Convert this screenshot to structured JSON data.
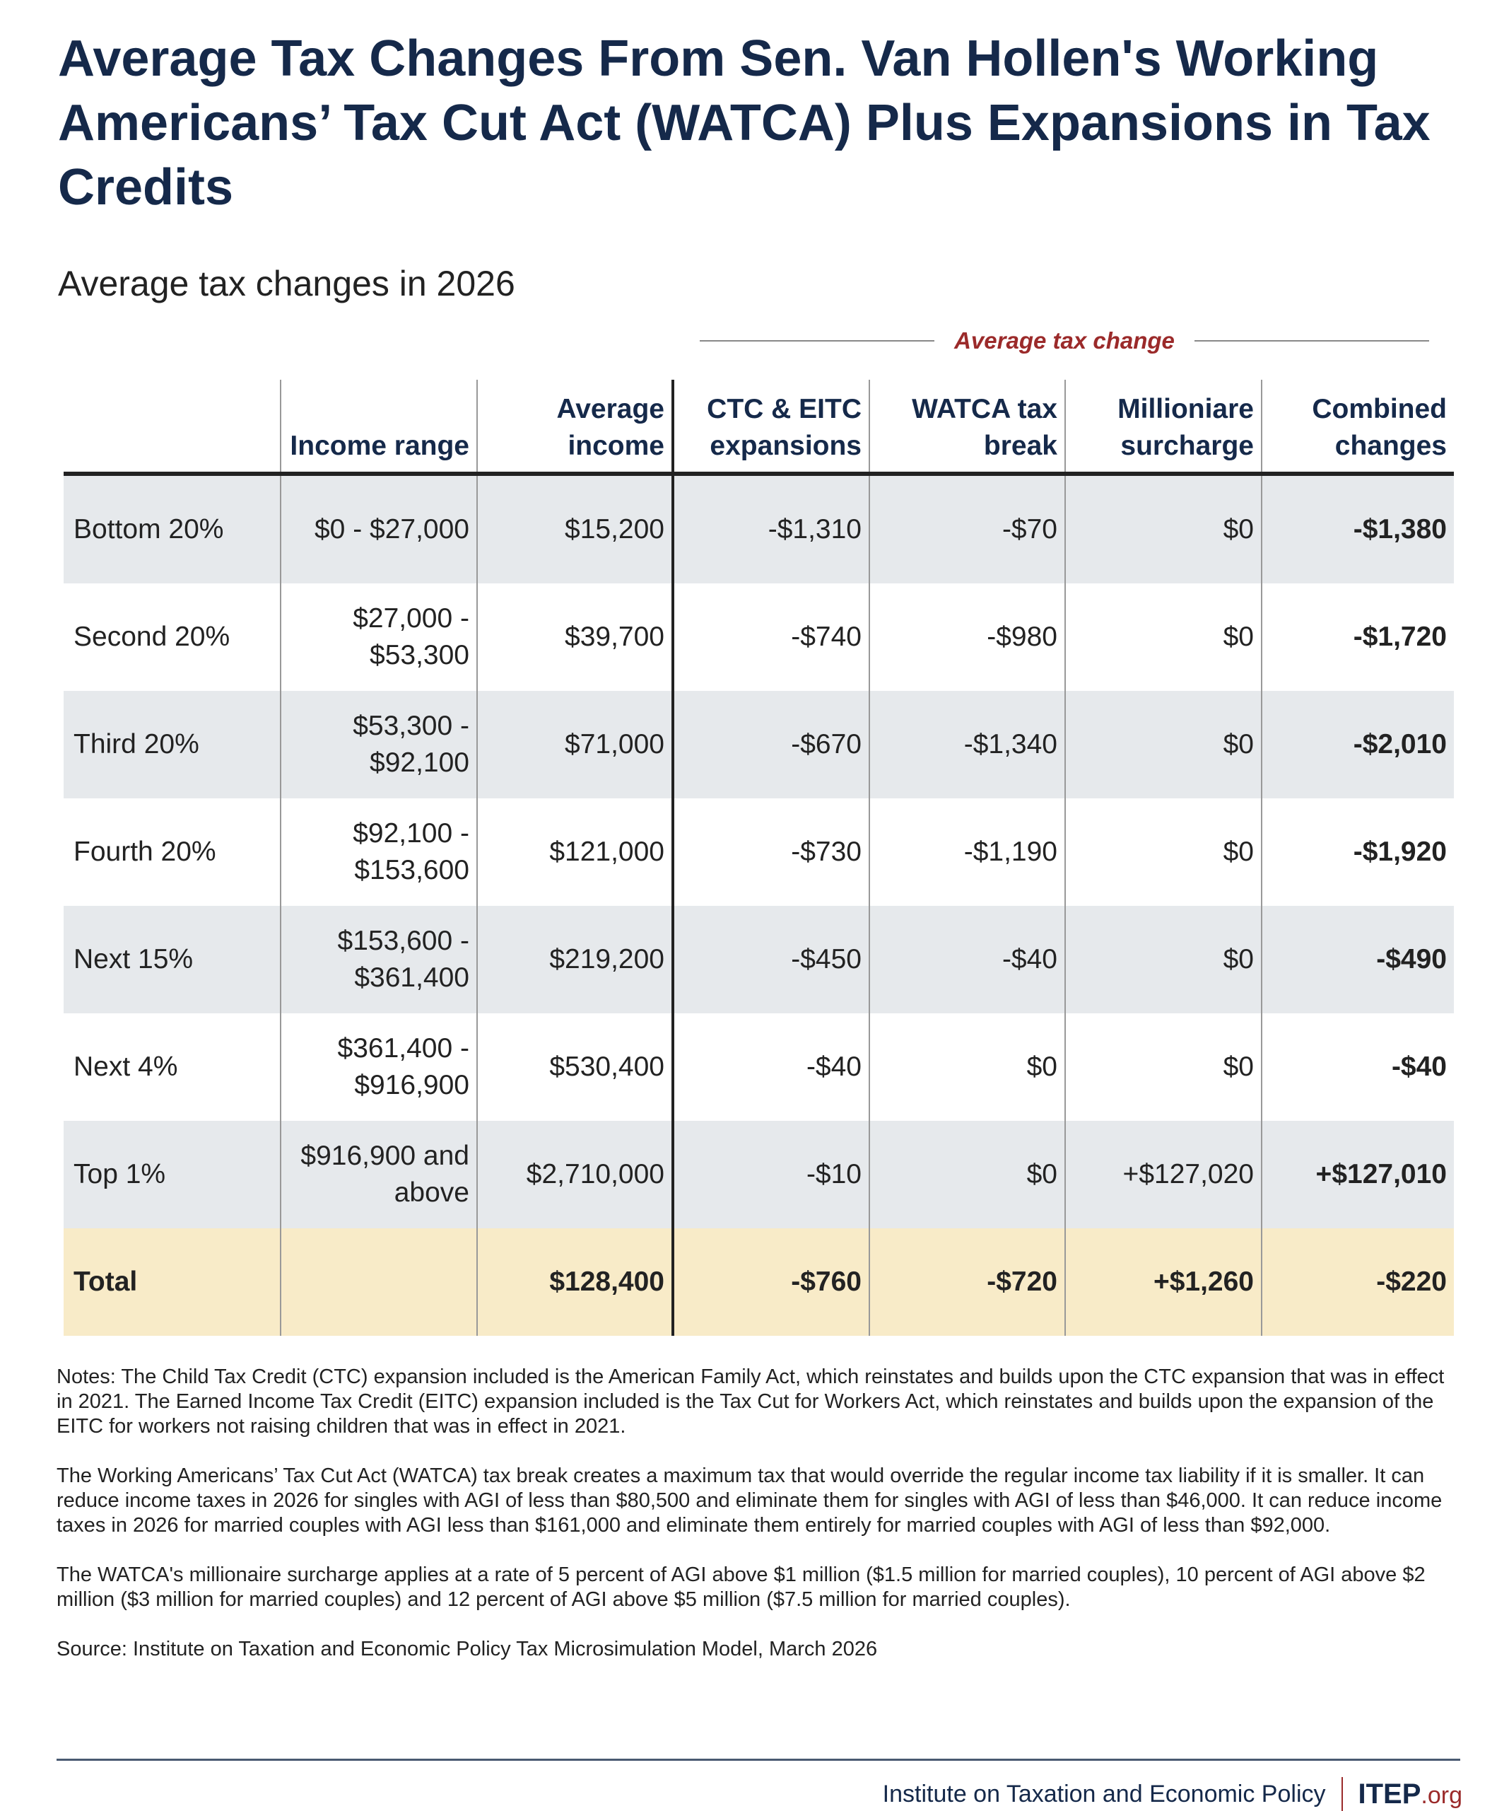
{
  "title": "Average Tax Changes From Sen. Van Hollen's Working Americans’ Tax Cut Act (WATCA) Plus Expansions in Tax Credits",
  "subtitle": "Average tax changes in 2026",
  "group_header": "Average tax change",
  "table": {
    "headers": [
      "",
      "Income range",
      "Average income",
      "CTC & EITC expansions",
      "WATCA tax break",
      "Millioniare surcharge",
      "Combined changes"
    ],
    "rows": [
      [
        "Bottom 20%",
        "$0 - $27,000",
        "$15,200",
        "-$1,310",
        "-$70",
        "$0",
        "-$1,380"
      ],
      [
        "Second 20%",
        "$27,000 - $53,300",
        "$39,700",
        "-$740",
        "-$980",
        "$0",
        "-$1,720"
      ],
      [
        "Third 20%",
        "$53,300 - $92,100",
        "$71,000",
        "-$670",
        "-$1,340",
        "$0",
        "-$2,010"
      ],
      [
        "Fourth 20%",
        "$92,100 - $153,600",
        "$121,000",
        "-$730",
        "-$1,190",
        "$0",
        "-$1,920"
      ],
      [
        "Next 15%",
        "$153,600 - $361,400",
        "$219,200",
        "-$450",
        "-$40",
        "$0",
        "-$490"
      ],
      [
        "Next 4%",
        "$361,400 - $916,900",
        "$530,400",
        "-$40",
        "$0",
        "$0",
        "-$40"
      ],
      [
        "Top 1%",
        "$916,900 and above",
        "$2,710,000",
        "-$10",
        "$0",
        "+$127,020",
        "+$127,010"
      ]
    ],
    "total": [
      "Total",
      "",
      "$128,400",
      "-$760",
      "-$720",
      "+$1,260",
      "-$220"
    ]
  },
  "notes": [
    "Notes: The Child Tax Credit (CTC) expansion included is the American Family Act, which reinstates and builds upon the CTC expansion that was in effect in 2021. The Earned Income Tax Credit (EITC) expansion included is the Tax Cut for Workers Act, which reinstates and builds upon the expansion of the EITC for workers not raising children that was in effect in 2021.",
    "The Working Americans’ Tax Cut Act (WATCA) tax break creates a maximum tax that would override the regular income tax liability if it is smaller. It can reduce income taxes in 2026 for singles with AGI of less than $80,500 and eliminate them for singles with AGI of less than $46,000. It can reduce income taxes in 2026 for married couples with AGI less than $161,000 and eliminate them entirely for married couples with AGI of less than $92,000.",
    "The WATCA's millionaire surcharge applies at a rate of 5 percent of AGI above $1 million ($1.5 million for married couples), 10 percent of AGI above $2 million ($3 million for married couples) and 12 percent of AGI above $5 million ($7.5 million for married couples).",
    "Source: Institute on Taxation and Economic Policy Tax Microsimulation Model, March 2026"
  ],
  "footer": {
    "org": "Institute on Taxation and Economic Policy",
    "logo_main": "ITEP",
    "logo_suffix": ".org"
  },
  "colors": {
    "navy": "#15294a",
    "accent_red": "#9b2a2a",
    "row_shade": "#e6e9ec",
    "total_shade": "#f8ebc8"
  }
}
